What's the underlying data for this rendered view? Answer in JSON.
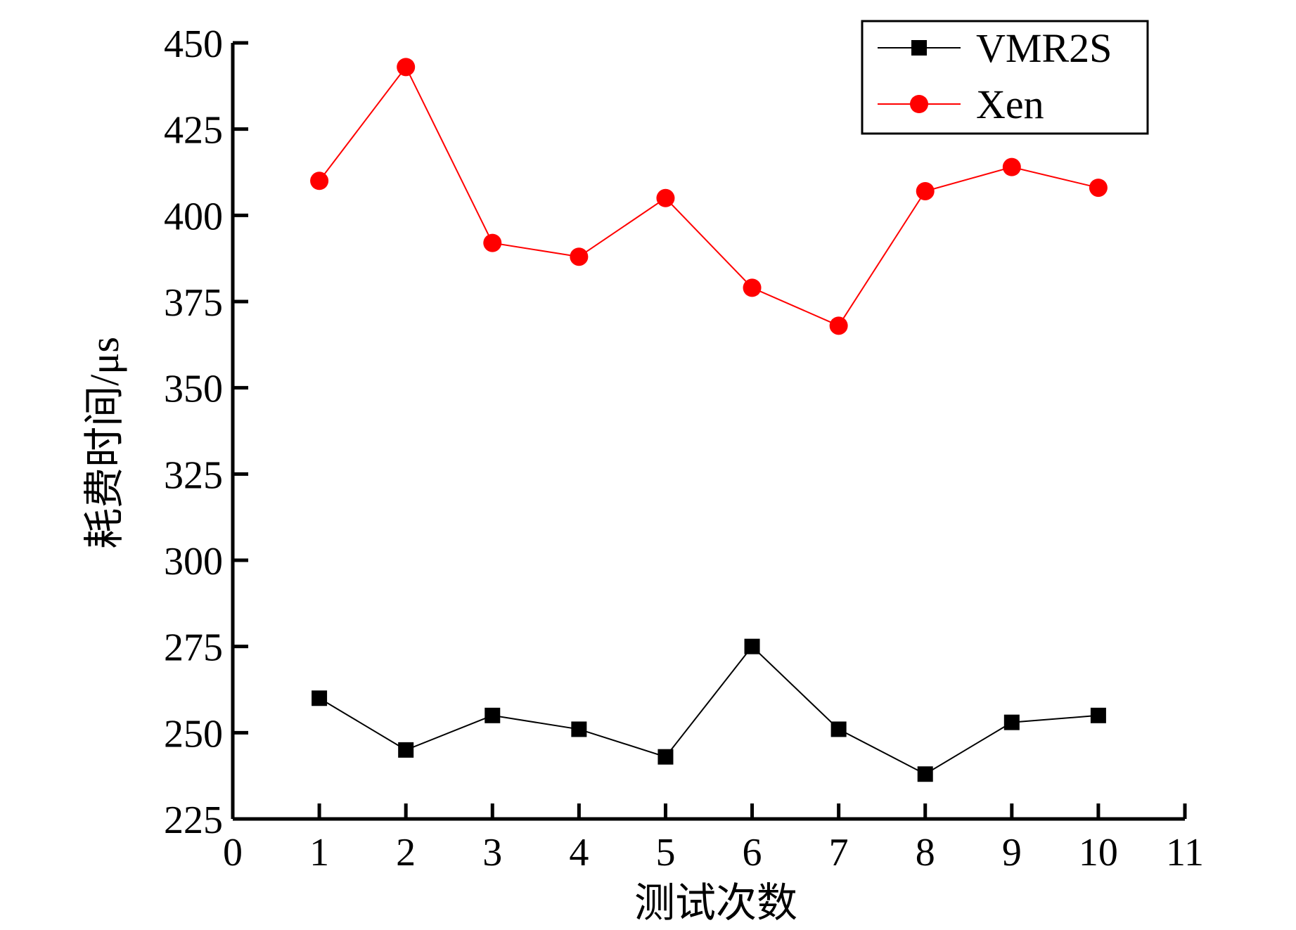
{
  "chart_data": {
    "type": "line",
    "xlabel": "测试次数",
    "ylabel": "耗费时间/μs",
    "xlim": [
      0,
      11
    ],
    "ylim": [
      225,
      450
    ],
    "xticks": [
      0,
      1,
      2,
      3,
      4,
      5,
      6,
      7,
      8,
      9,
      10,
      11
    ],
    "yticks": [
      225,
      250,
      275,
      300,
      325,
      350,
      375,
      400,
      425,
      450
    ],
    "legend_position": "top-right",
    "series": [
      {
        "name": "VMR2S",
        "color": "#000000",
        "marker": "square",
        "x": [
          1,
          2,
          3,
          4,
          5,
          6,
          7,
          8,
          9,
          10
        ],
        "values": [
          260,
          245,
          255,
          251,
          243,
          275,
          251,
          238,
          253,
          255
        ]
      },
      {
        "name": "Xen",
        "color": "#ff0000",
        "marker": "circle",
        "x": [
          1,
          2,
          3,
          4,
          5,
          6,
          7,
          8,
          9,
          10
        ],
        "values": [
          410,
          443,
          392,
          388,
          405,
          379,
          368,
          407,
          414,
          408
        ]
      }
    ]
  }
}
